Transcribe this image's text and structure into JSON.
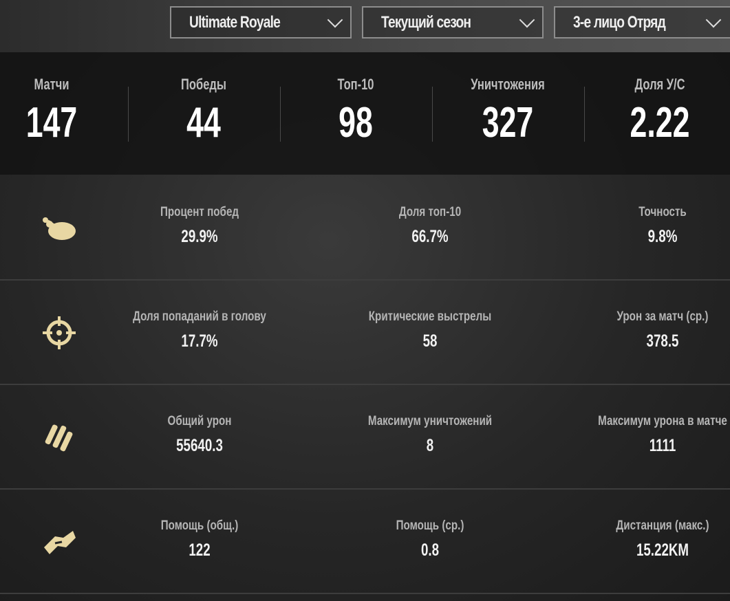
{
  "filters": {
    "mode": "Ultimate Royale",
    "season": "Текущий сезон",
    "perspective": "3-е лицо Отряд"
  },
  "summary": [
    {
      "label": "Матчи",
      "value": "147"
    },
    {
      "label": "Победы",
      "value": "44"
    },
    {
      "label": "Топ-10",
      "value": "98"
    },
    {
      "label": "Уничтожения",
      "value": "327"
    },
    {
      "label": "Доля У/С",
      "value": "2.22"
    }
  ],
  "accent_color": "#e8d7a3",
  "rows": [
    {
      "icon": "chicken-icon",
      "stats": [
        {
          "label": "Процент побед",
          "value": "29.9%"
        },
        {
          "label": "Доля топ-10",
          "value": "66.7%"
        },
        {
          "label": "Точность",
          "value": "9.8%"
        }
      ]
    },
    {
      "icon": "crosshair-icon",
      "stats": [
        {
          "label": "Доля попаданий в голову",
          "value": "17.7%"
        },
        {
          "label": "Критические выстрелы",
          "value": "58"
        },
        {
          "label": "Урон за матч (ср.)",
          "value": "378.5"
        }
      ]
    },
    {
      "icon": "bullets-icon",
      "stats": [
        {
          "label": "Общий урон",
          "value": "55640.3"
        },
        {
          "label": "Максимум уничтожений",
          "value": "8"
        },
        {
          "label": "Максимум урона в матче",
          "value": "1111"
        }
      ]
    },
    {
      "icon": "handshake-icon",
      "stats": [
        {
          "label": "Помощь (общ.)",
          "value": "122"
        },
        {
          "label": "Помощь (ср.)",
          "value": "0.8"
        },
        {
          "label": "Дистанция (макс.)",
          "value": "15.22KM"
        }
      ]
    }
  ]
}
